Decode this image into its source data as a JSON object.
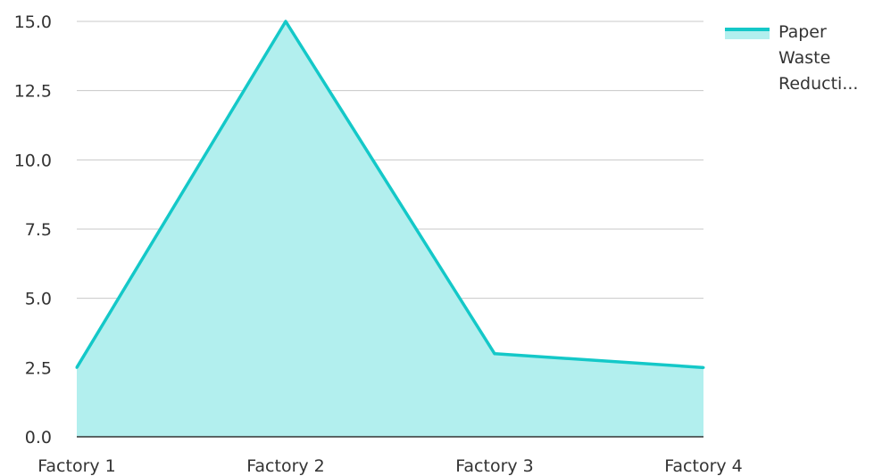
{
  "chart_data": {
    "type": "area",
    "categories": [
      "Factory 1",
      "Factory 2",
      "Factory 3",
      "Factory 4"
    ],
    "series": [
      {
        "name": "Paper Waste Reducti...",
        "values": [
          2.5,
          15.0,
          3.0,
          2.5
        ]
      }
    ],
    "ylim": [
      0,
      15
    ],
    "yticks": [
      "0.0",
      "2.5",
      "5.0",
      "7.5",
      "10.0",
      "12.5",
      "15.0"
    ],
    "grid": true,
    "legend_position": "top-right",
    "colors": {
      "line": "#14c8c8",
      "fill": "#b2efee",
      "grid": "#c8c8c8",
      "axis": "#333333"
    }
  }
}
